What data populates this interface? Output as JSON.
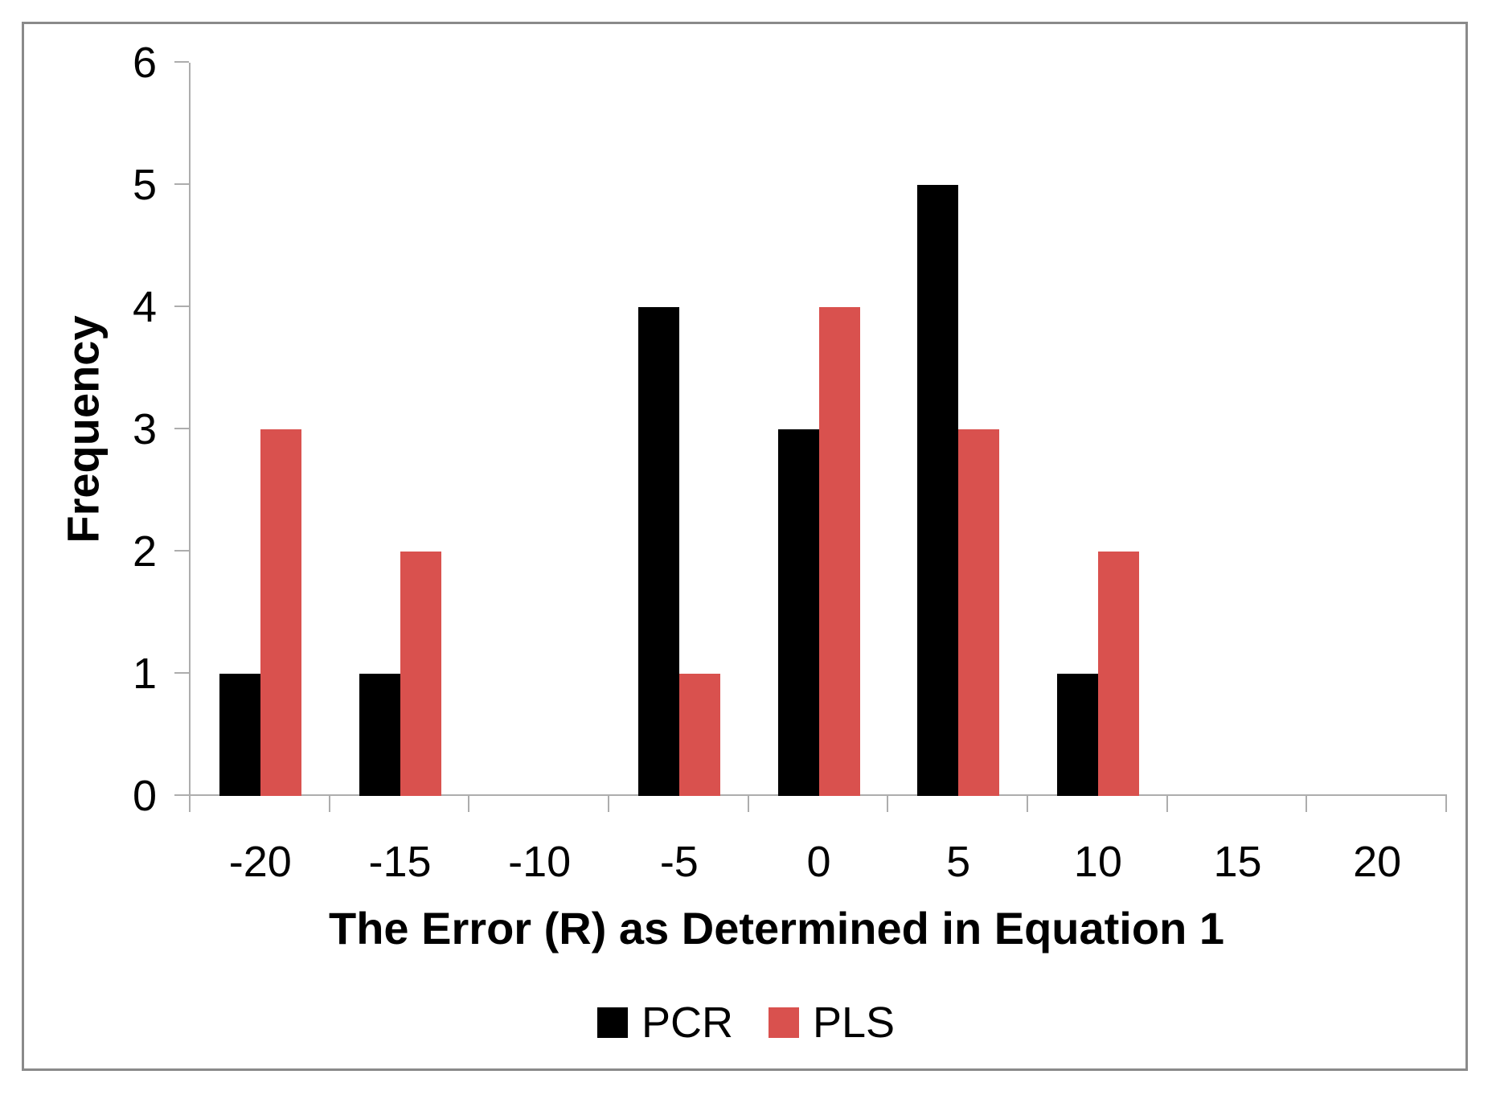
{
  "chart_data": {
    "type": "bar",
    "title": "",
    "xlabel": "The Error (R) as Determined in Equation 1",
    "ylabel": "Frequency",
    "categories": [
      "-20",
      "-15",
      "-10",
      "-5",
      "0",
      "5",
      "10",
      "15",
      "20"
    ],
    "series": [
      {
        "name": "PCR",
        "color": "#000000",
        "values": [
          1,
          1,
          0,
          4,
          3,
          5,
          1,
          0,
          0
        ]
      },
      {
        "name": "PLS",
        "color": "#D9514E",
        "values": [
          3,
          2,
          0,
          1,
          4,
          3,
          2,
          0,
          0
        ]
      }
    ],
    "ylim": [
      0,
      6
    ],
    "yticks": [
      "0",
      "1",
      "2",
      "3",
      "4",
      "5",
      "6"
    ],
    "grid": false,
    "legend_position": "bottom",
    "axis_color": "#adadad"
  }
}
